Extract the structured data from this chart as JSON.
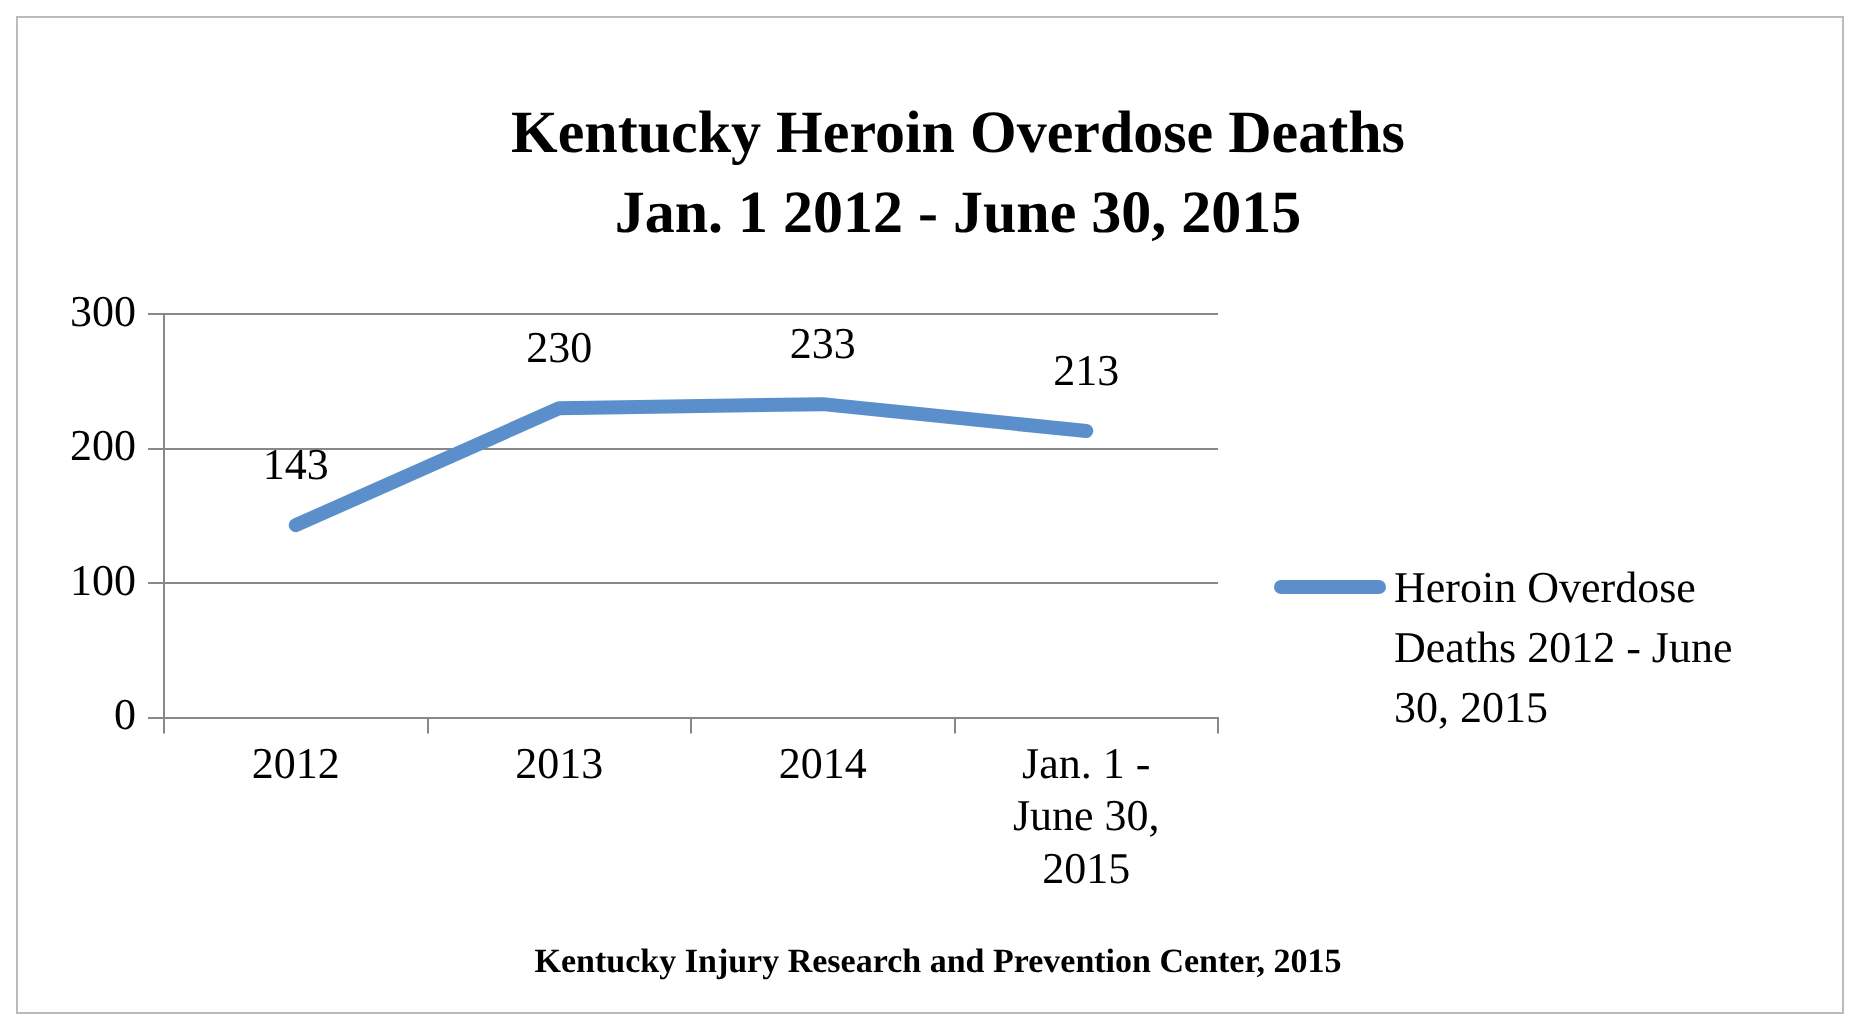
{
  "chart_data": {
    "type": "line",
    "title": "Kentucky Heroin Overdose Deaths Jan. 1 2012 - June 30, 2015",
    "categories": [
      "2012",
      "2013",
      "2014",
      "Jan. 1 - June 30, 2015"
    ],
    "series": [
      {
        "name": "Heroin Overdose Deaths 2012 - June 30, 2015",
        "color": "#5b8fcb",
        "values": [
          143,
          230,
          233,
          213
        ]
      }
    ],
    "ylim": [
      0,
      300
    ],
    "yticks": [
      0,
      100,
      200,
      300
    ],
    "grid": "y",
    "legend": "right",
    "data_labels": true,
    "marker": "none",
    "line_style": "solid",
    "annotations": [
      "Kentucky Injury Research and Prevention Center, 2015"
    ]
  }
}
